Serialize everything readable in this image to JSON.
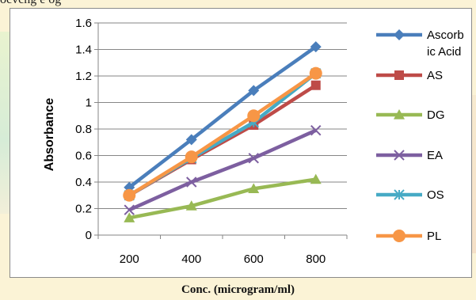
{
  "header_text": "ocvcng e  og",
  "x_caption": "Conc. (microgram/ml)",
  "chart_data": {
    "type": "line",
    "title": "",
    "xlabel": "",
    "ylabel": "Absorbance",
    "categories": [
      "200",
      "400",
      "600",
      "800"
    ],
    "ylim": [
      0,
      1.6
    ],
    "yticks": [
      "0",
      "0.2",
      "0.4",
      "0.6",
      "0.8",
      "1",
      "1.2",
      "1.4",
      "1.6"
    ],
    "grid": "horizontal",
    "legend_position": "right",
    "series": [
      {
        "name": "Ascorbic Acid",
        "legend_lines": [
          "Ascorb",
          "ic Acid"
        ],
        "values": [
          0.36,
          0.72,
          1.09,
          1.42
        ],
        "color": "#4a7ebb",
        "marker": "diamond"
      },
      {
        "name": "AS",
        "legend_lines": [
          "AS"
        ],
        "values": [
          0.3,
          0.57,
          0.83,
          1.13
        ],
        "color": "#be4b48",
        "marker": "square"
      },
      {
        "name": "DG",
        "legend_lines": [
          "DG"
        ],
        "values": [
          0.13,
          0.22,
          0.35,
          0.42
        ],
        "color": "#98b954",
        "marker": "triangle"
      },
      {
        "name": "EA",
        "legend_lines": [
          "EA"
        ],
        "values": [
          0.19,
          0.4,
          0.58,
          0.79
        ],
        "color": "#7d5fa0",
        "marker": "x"
      },
      {
        "name": "OS",
        "legend_lines": [
          "OS"
        ],
        "values": [
          0.3,
          0.58,
          0.85,
          1.22
        ],
        "color": "#46aac5",
        "marker": "star"
      },
      {
        "name": "PL",
        "legend_lines": [
          "PL"
        ],
        "values": [
          0.3,
          0.59,
          0.9,
          1.22
        ],
        "color": "#f79646",
        "marker": "circle"
      }
    ]
  }
}
